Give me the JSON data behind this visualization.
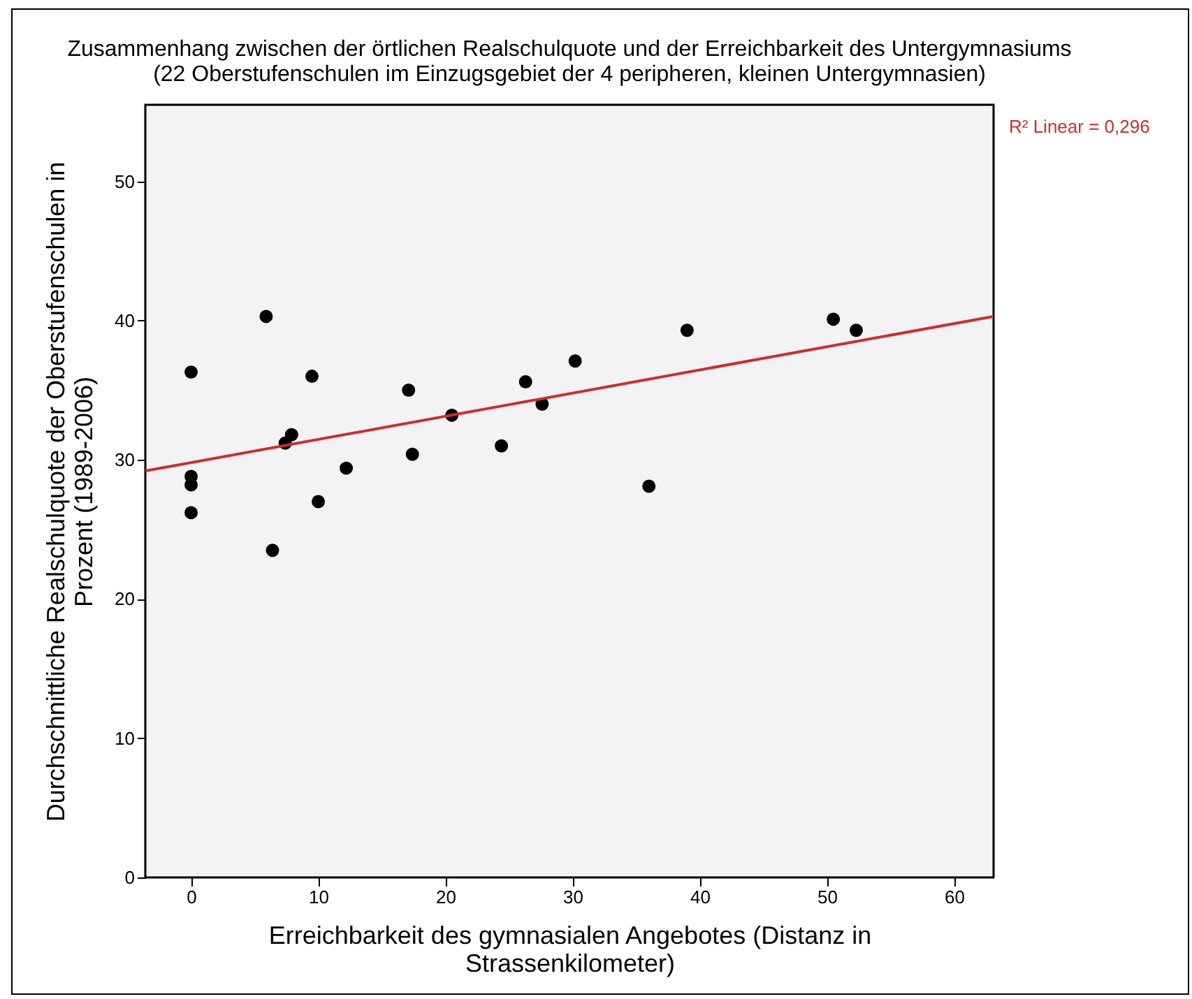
{
  "chart_data": {
    "type": "scatter",
    "title": "Zusammenhang zwischen der örtlichen Realschulquote und der Erreichbarkeit des Untergymnasiums",
    "subtitle": "(22 Oberstufenschulen im Einzugsgebiet der 4 peripheren, kleinen Untergymnasien)",
    "xlabel": "Erreichbarkeit des gymnasialen Angebotes (Distanz in Strassenkilometer)",
    "ylabel": "Durchschnittliche Realschulquote der Oberstufenschulen in Prozent (1989-2006)",
    "annotations": [
      "R² Linear = 0,296"
    ],
    "xlim": [
      -3.6,
      63.1
    ],
    "ylim": [
      0,
      55.5
    ],
    "xticks": [
      0,
      10,
      20,
      30,
      40,
      50,
      60
    ],
    "yticks": [
      0,
      10,
      20,
      30,
      40,
      50
    ],
    "marker": "circle",
    "series": [
      {
        "type": "scatter",
        "color": "#000000",
        "x": [
          0,
          0,
          0,
          0,
          5.9,
          6.4,
          7.4,
          7.9,
          9.5,
          10.0,
          12.2,
          17.1,
          17.4,
          20.5,
          24.4,
          26.3,
          27.6,
          30.2,
          36.0,
          39.0,
          50.5,
          52.3
        ],
        "values": [
          36.3,
          28.8,
          28.2,
          26.2,
          40.3,
          23.5,
          31.2,
          31.8,
          36.0,
          27.0,
          29.4,
          35.0,
          30.4,
          33.2,
          31.0,
          35.6,
          34.0,
          37.1,
          28.1,
          39.3,
          40.1,
          39.3
        ]
      },
      {
        "type": "line",
        "marker": "none",
        "color": "#d42a2a",
        "x": [
          -3.6,
          63.1
        ],
        "values": [
          29.2,
          40.3
        ]
      }
    ]
  }
}
